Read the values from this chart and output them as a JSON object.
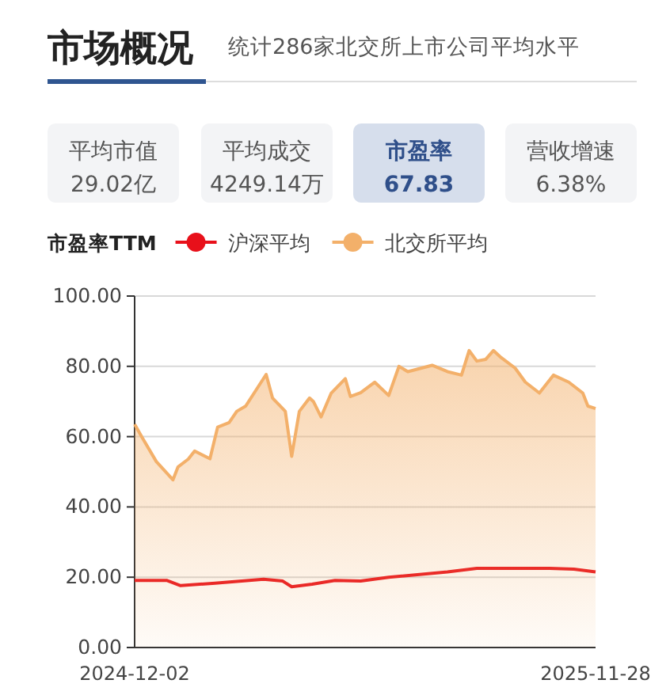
{
  "chart_data": {
    "type": "line",
    "title": "市场概况",
    "subtitle": "统计286家北交所上市公司平均水平",
    "annotations": [
      "平均市值",
      "29.02亿",
      "平均成交",
      "4249.14万",
      "市盈率",
      "67.83",
      "营收增速",
      "6.38%"
    ],
    "legend_title": "市盈率TTM",
    "legend": "top",
    "grid": "y",
    "xlim": [
      "2024-12-02",
      "2025-11-28"
    ],
    "xticks": [
      "2024-12-02",
      "2025-11-28"
    ],
    "ylim": [
      0,
      100
    ],
    "yticks": [
      {
        "value": 0,
        "label": "0.00"
      },
      {
        "value": 20,
        "label": "20.00"
      },
      {
        "value": 40,
        "label": "40.00"
      },
      {
        "value": 60,
        "label": "60.00"
      },
      {
        "value": 80,
        "label": "80.00"
      },
      {
        "value": 100,
        "label": "100.00"
      }
    ],
    "series": [
      {
        "name": "沪深平均",
        "color": "#e8101a",
        "x": [
          "2024-12-02",
          "2024-12-27",
          "2025-01-07",
          "2025-02-03",
          "2025-03-13",
          "2025-03-28",
          "2025-04-04",
          "2025-04-20",
          "2025-05-08",
          "2025-05-28",
          "2025-06-19",
          "2025-08-04",
          "2025-08-27",
          "2025-10-04",
          "2025-10-23",
          "2025-11-11",
          "2025-11-28"
        ],
        "values": [
          19.1,
          19.1,
          17.6,
          18.3,
          19.4,
          18.9,
          17.3,
          18,
          19.1,
          18.9,
          20,
          21.5,
          22.5,
          22.5,
          22.5,
          22.3,
          21.5
        ]
      },
      {
        "name": "北交所平均",
        "type": "area",
        "color": "#f3b06a",
        "x": [
          "2024-12-02",
          "2024-12-08",
          "2024-12-19",
          "2025-01-01",
          "2025-01-05",
          "2025-01-13",
          "2025-01-18",
          "2025-01-30",
          "2025-02-05",
          "2025-02-14",
          "2025-02-20",
          "2025-02-27",
          "2025-03-07",
          "2025-03-15",
          "2025-03-20",
          "2025-03-26",
          "2025-03-30",
          "2025-04-04",
          "2025-04-10",
          "2025-04-18",
          "2025-04-21",
          "2025-04-27",
          "2025-05-05",
          "2025-05-16",
          "2025-05-20",
          "2025-05-28",
          "2025-06-08",
          "2025-06-19",
          "2025-06-27",
          "2025-07-04",
          "2025-07-23",
          "2025-08-04",
          "2025-08-15",
          "2025-08-21",
          "2025-08-27",
          "2025-09-03",
          "2025-09-09",
          "2025-09-15",
          "2025-09-26",
          "2025-10-04",
          "2025-10-15",
          "2025-10-26",
          "2025-11-07",
          "2025-11-18",
          "2025-11-22",
          "2025-11-28"
        ],
        "values": [
          63.5,
          59.7,
          52.9,
          47.7,
          51.4,
          53.6,
          55.9,
          53.7,
          62.7,
          64,
          67.2,
          68.7,
          73.2,
          77.7,
          71,
          68.7,
          67.2,
          54.4,
          67.2,
          71,
          70,
          65.6,
          72.4,
          76.5,
          71.4,
          72.5,
          75.5,
          71.7,
          80,
          78.5,
          80.3,
          78.5,
          77.5,
          84.5,
          81.5,
          82,
          84.5,
          82.5,
          79.5,
          75.5,
          72.4,
          77.5,
          75.5,
          72.4,
          68.7,
          68
        ]
      }
    ]
  }
}
